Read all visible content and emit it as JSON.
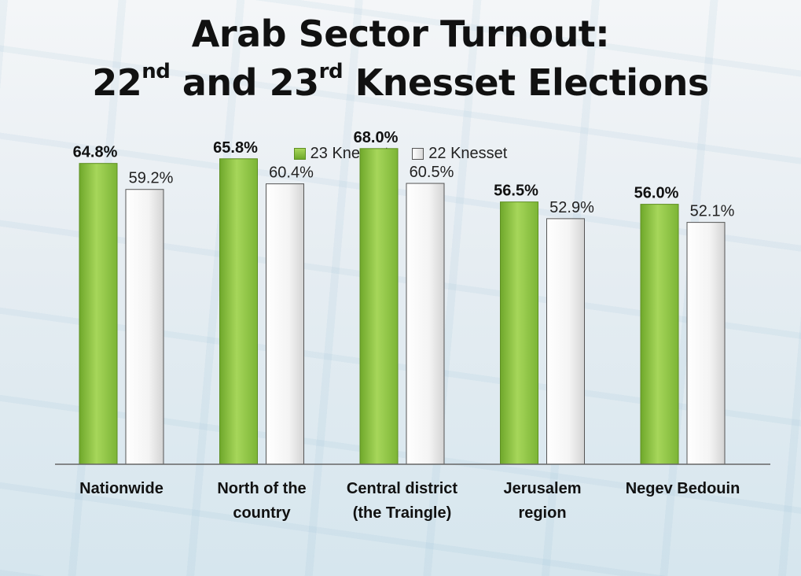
{
  "title": {
    "line1": "Arab Sector Turnout:",
    "line2_a": "22",
    "line2_sup_a": "nd",
    "line2_b": " and 23",
    "line2_sup_b": "rd",
    "line2_c": " Knesset Elections"
  },
  "chart_data": {
    "type": "bar",
    "title": "Arab Sector Turnout: 22nd and 23rd Knesset Elections",
    "categories": [
      "Nationwide",
      "North of the country",
      "Central district (the Traingle)",
      "Jerusalem region",
      "Negev Bedouin"
    ],
    "category_lines": [
      [
        "Nationwide"
      ],
      [
        "North of the",
        "country"
      ],
      [
        "Central district",
        "(the Traingle)"
      ],
      [
        "Jerusalem",
        "region"
      ],
      [
        "Negev Bedouin"
      ]
    ],
    "series": [
      {
        "name": "23 Knesset",
        "values": [
          64.8,
          65.8,
          68.0,
          56.5,
          56.0
        ],
        "labels": [
          "64.8%",
          "65.8%",
          "68.0%",
          "56.5%",
          "56.0%"
        ],
        "color": "#8cc63f"
      },
      {
        "name": "22 Knesset",
        "values": [
          59.2,
          60.4,
          60.5,
          52.9,
          52.1
        ],
        "labels": [
          "59.2%",
          "60.4%",
          "60.5%",
          "52.9%",
          "52.1%"
        ],
        "color": "#f2f2f2"
      }
    ],
    "ylim": [
      0,
      100
    ],
    "xlabel": "",
    "ylabel": "",
    "legend_position": "top-center",
    "grid": false
  }
}
